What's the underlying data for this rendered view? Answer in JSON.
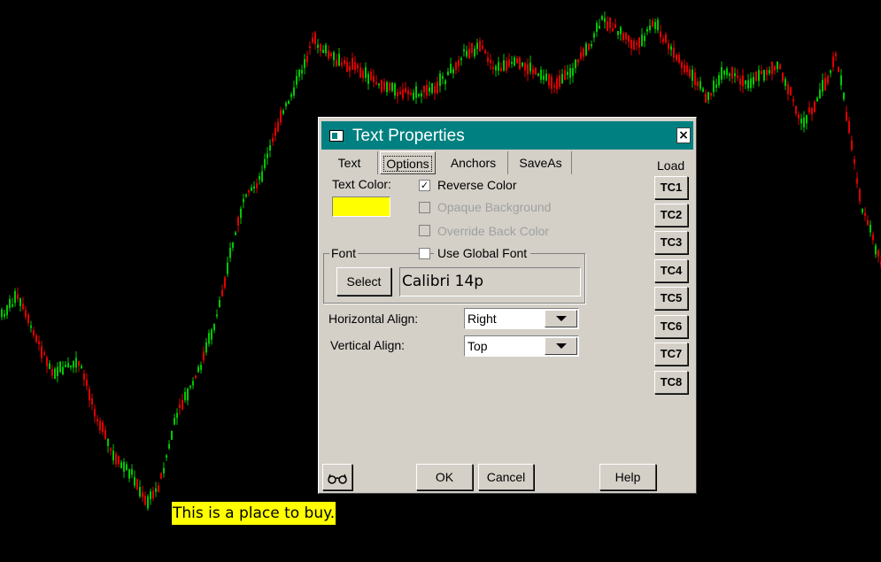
{
  "dialog": {
    "title": "Text Properties",
    "close_label": "×",
    "tabs": [
      "Text",
      "Options",
      "Anchors",
      "SaveAs"
    ],
    "active_tab": "Options",
    "text_color_label": "Text Color:",
    "text_color": "#ffff00",
    "reverse_color": {
      "label": "Reverse Color",
      "checked": true
    },
    "opaque_background": {
      "label": "Opaque Background",
      "checked": false,
      "enabled": false
    },
    "override_back_color": {
      "label": "Override Back Color",
      "checked": false,
      "enabled": false
    },
    "use_global_font": {
      "label": "Use Global Font",
      "checked": false
    },
    "font_group_label": "Font",
    "select_button": "Select",
    "font_value": "Calibri 14p",
    "horizontal_align_label": "Horizontal Align:",
    "horizontal_align_value": "Right",
    "vertical_align_label": "Vertical Align:",
    "vertical_align_value": "Top",
    "load_label": "Load",
    "load_buttons": [
      "TC1",
      "TC2",
      "TC3",
      "TC4",
      "TC5",
      "TC6",
      "TC7",
      "TC8"
    ],
    "ok_button": "OK",
    "cancel_button": "Cancel",
    "help_button": "Help",
    "preview_icon": "glasses-icon"
  },
  "chart_annotation": {
    "text": "This is a place to buy.",
    "background": "#ffff00"
  },
  "colors": {
    "up_candle": "#00c800",
    "down_candle": "#e00000",
    "title_bar": "#008080"
  }
}
